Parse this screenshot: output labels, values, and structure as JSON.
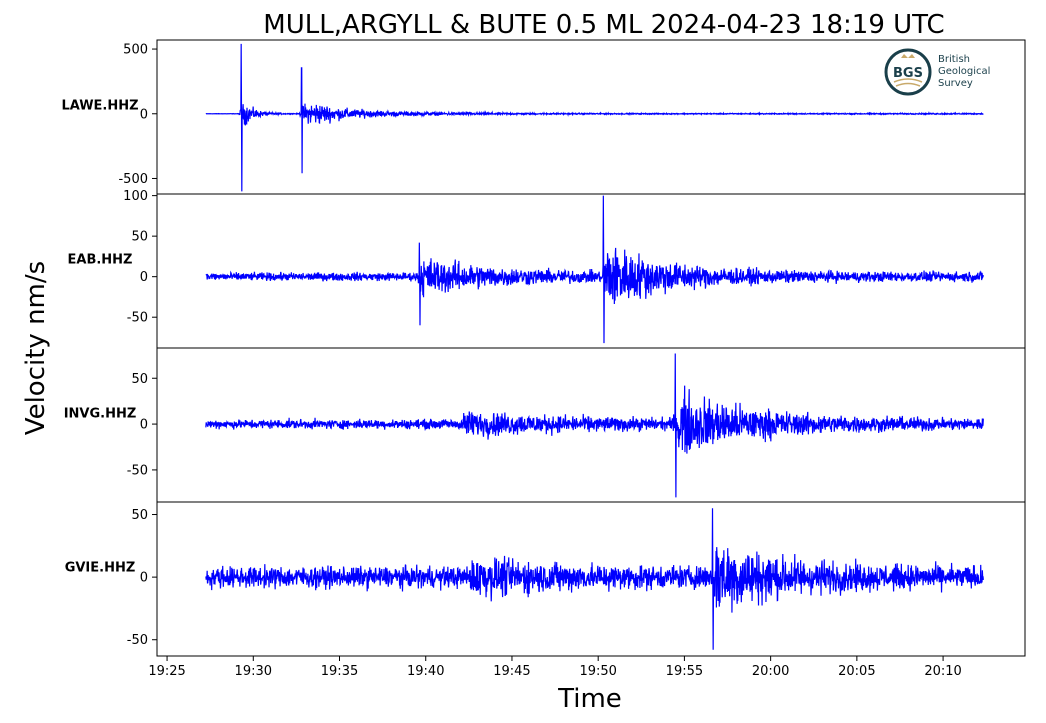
{
  "title": "MULL,ARGYLL & BUTE 0.5 ML   2024-04-23 18:19 UTC",
  "logo": {
    "abbr": "BGS",
    "lines": [
      "British",
      "Geological",
      "Survey"
    ],
    "ring_color": "#1a3f4a",
    "accent_color": "#c8a96a"
  },
  "colors": {
    "trace": "#0000ff",
    "axes": "#000000"
  },
  "chart_data": {
    "type": "line",
    "title": "MULL,ARGYLL & BUTE 0.5 ML   2024-04-23 18:19 UTC",
    "xlabel": "Time",
    "ylabel": "Velocity nm/s",
    "x_range": [
      "19:27:15",
      "20:12:20"
    ],
    "xlim": [
      "19:24:25",
      "20:14:45"
    ],
    "x_ticks": [
      "19:25",
      "19:30",
      "19:35",
      "19:40",
      "19:45",
      "19:50",
      "19:55",
      "20:00",
      "20:05",
      "20:10"
    ],
    "grid": false,
    "panels": [
      {
        "station": "LAWE.HHZ",
        "ylim": [
          -620,
          570
        ],
        "y_ticks": [
          500,
          0,
          -500
        ],
        "y_tick_labels": [
          "500",
          "0",
          "-500"
        ],
        "noise": 1,
        "bursts": [
          {
            "t": "19:29:10",
            "amp": 120,
            "decay": 40,
            "spike_pos": 540,
            "spike_neg": -600
          },
          {
            "t": "19:32:40",
            "amp": 85,
            "decay": 70,
            "spike_pos": 355,
            "spike_neg": -460
          },
          {
            "t": "19:33:10",
            "amp": 40,
            "decay": 300
          }
        ],
        "final_noise": 4
      },
      {
        "station": "EAB.HHZ",
        "ylim": [
          -88,
          102
        ],
        "y_ticks": [
          100,
          50,
          0,
          -50
        ],
        "y_tick_labels": [
          "100",
          "50",
          "0",
          "-50"
        ],
        "noise": 4,
        "bursts": [
          {
            "t": "19:39:30",
            "amp": 18,
            "decay": 260,
            "spike_pos": 42,
            "spike_neg": -60
          },
          {
            "t": "19:50:10",
            "amp": 32,
            "decay": 220,
            "spike_pos": 100,
            "spike_neg": -82
          }
        ],
        "final_noise": 5
      },
      {
        "station": "INVG.HHZ",
        "ylim": [
          -85,
          83
        ],
        "y_ticks": [
          50,
          0,
          -50
        ],
        "y_tick_labels": [
          "50",
          "0",
          "-50"
        ],
        "noise": 4,
        "bursts": [
          {
            "t": "19:42:00",
            "amp": 9,
            "decay": 360
          },
          {
            "t": "19:54:20",
            "amp": 28,
            "decay": 260,
            "spike_pos": 77,
            "spike_neg": -80
          }
        ],
        "final_noise": 5
      },
      {
        "station": "GVIE.HHZ",
        "ylim": [
          -63,
          60
        ],
        "y_ticks": [
          50,
          0,
          -50
        ],
        "y_tick_labels": [
          "50",
          "0",
          "-50"
        ],
        "noise": 7,
        "bursts": [
          {
            "t": "19:42:30",
            "amp": 8,
            "decay": 300
          },
          {
            "t": "19:56:30",
            "amp": 20,
            "decay": 240,
            "spike_pos": 55,
            "spike_neg": -58
          }
        ],
        "final_noise": 7
      }
    ]
  }
}
